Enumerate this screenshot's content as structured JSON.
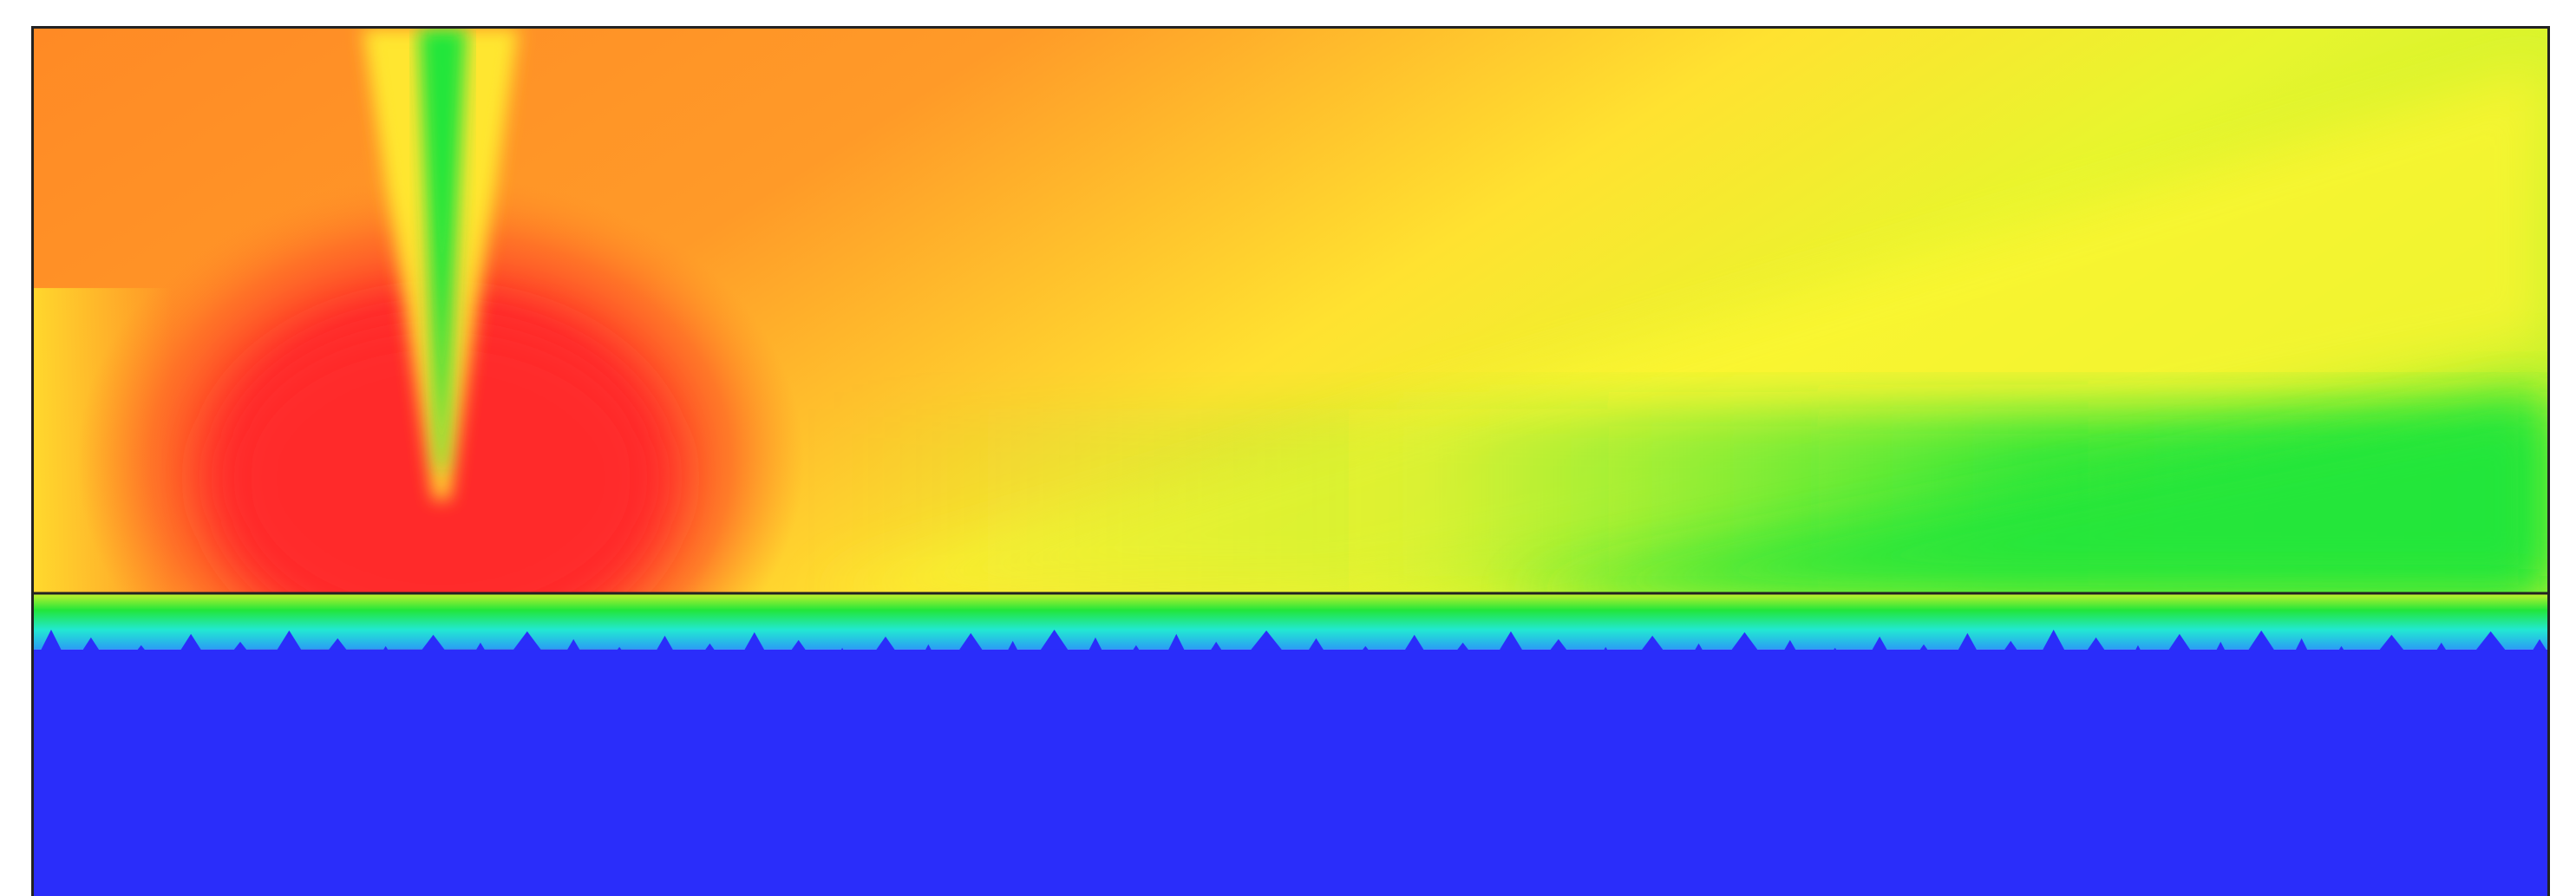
{
  "visualization": {
    "colors": {
      "frame": "#222222",
      "interface_line": "#222222",
      "substrate": "#2a2dfa",
      "hot": "#ff2a2a",
      "warm": "#ff8a25",
      "mild": "#fff530",
      "cool_green": "#22e63a",
      "cyan": "#22e8d2"
    }
  }
}
